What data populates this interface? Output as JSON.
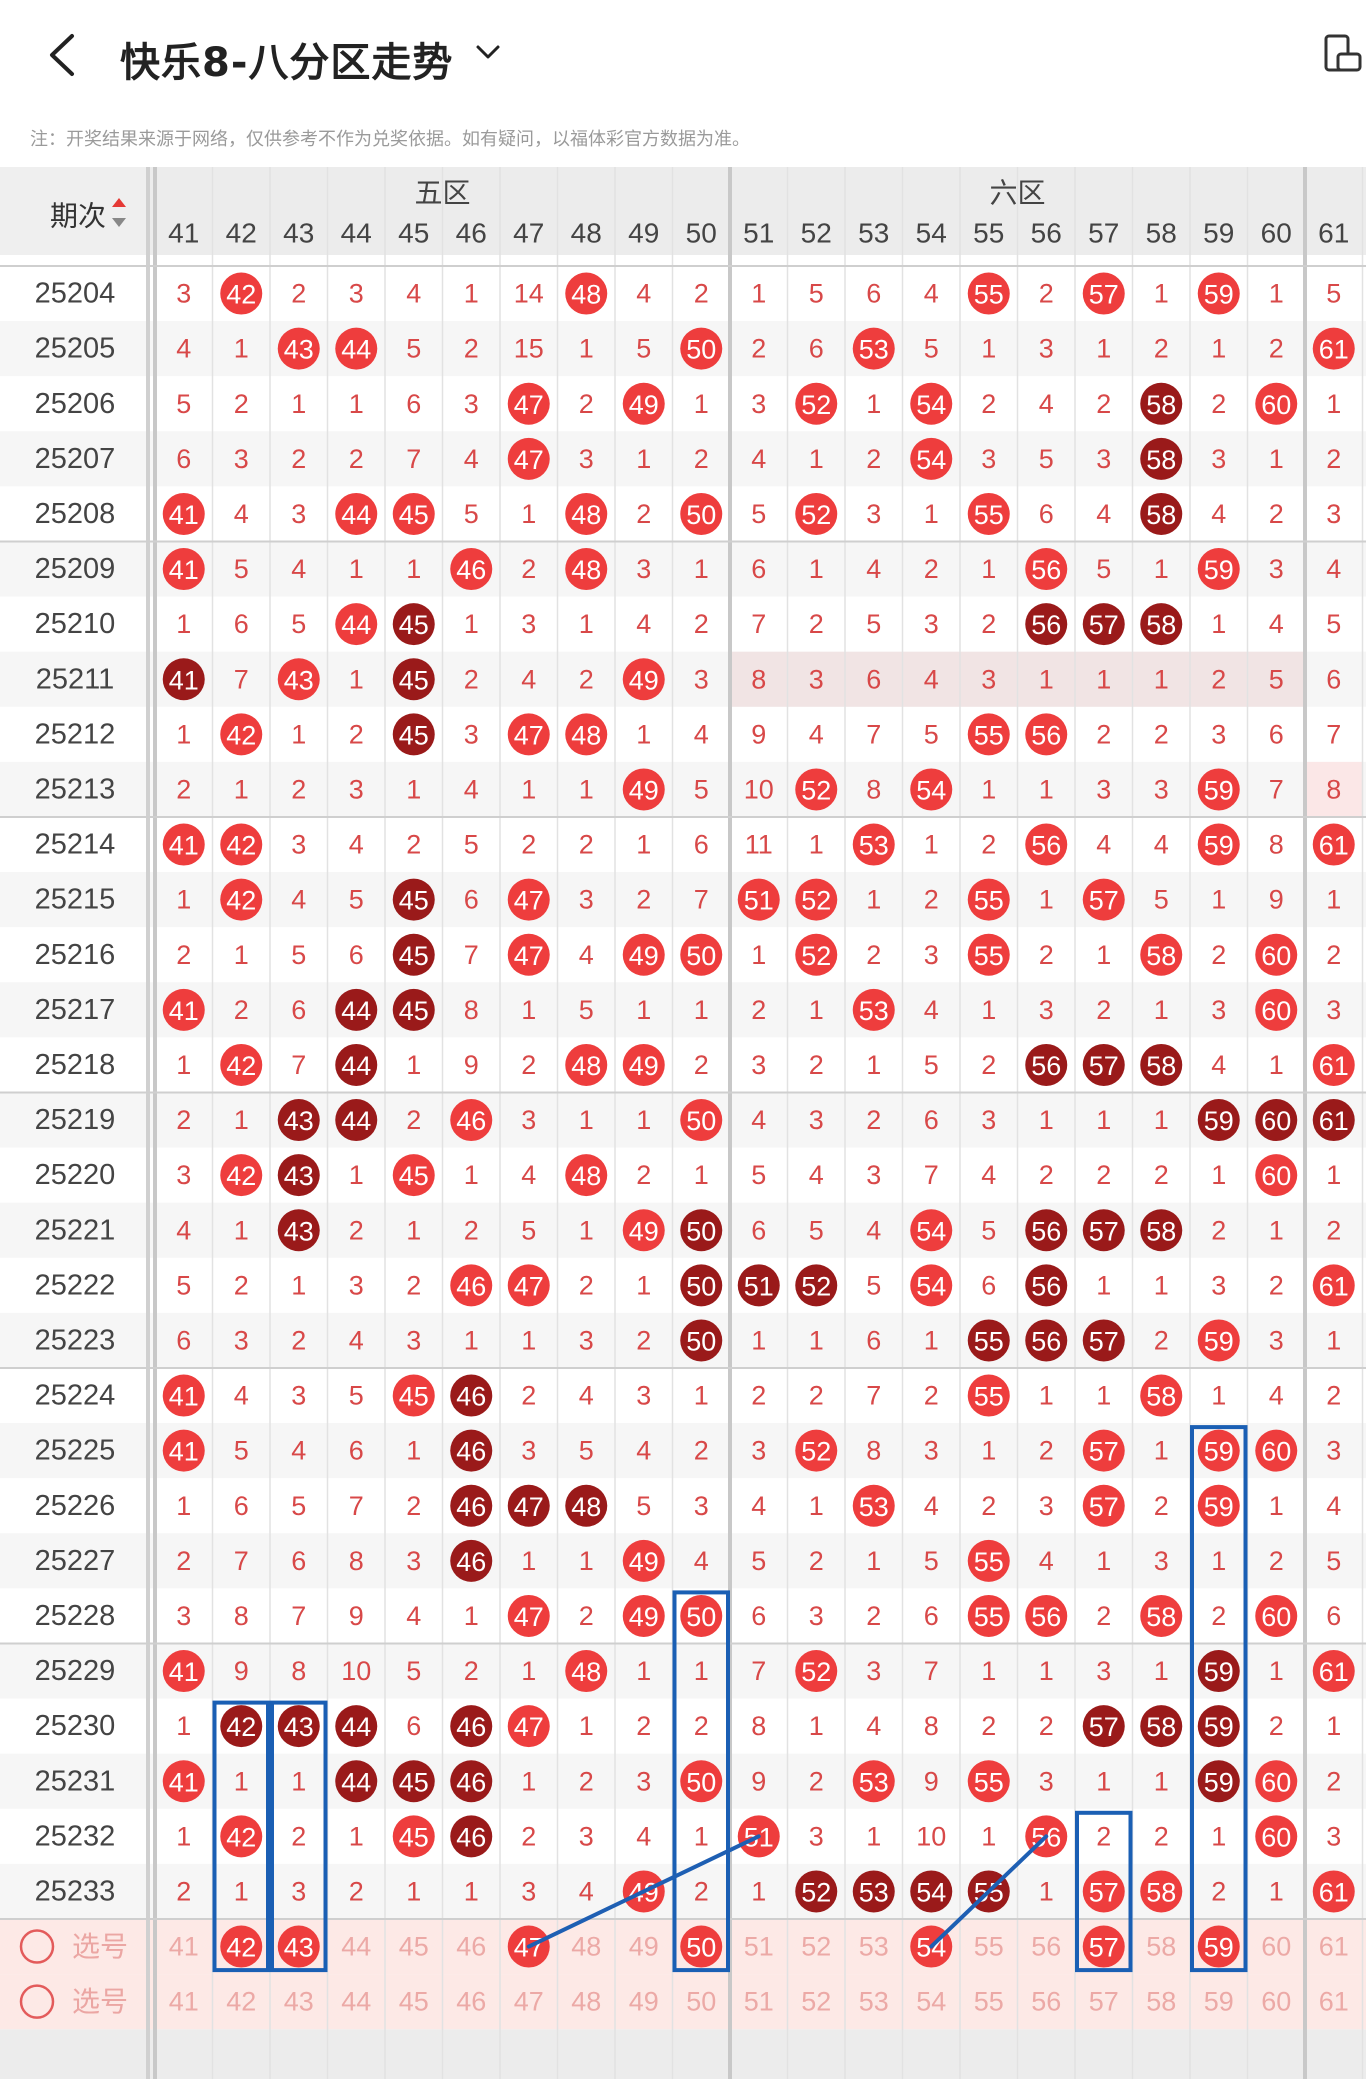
{
  "header": {
    "title": "快乐8-八分区走势"
  },
  "notice": "注：开奖结果来源于网络，仅供参考不作为兑奖依据。如有疑问，以福体彩官方数据为准。",
  "table": {
    "period_header": "期次",
    "zone_labels": [
      "五区",
      "六区"
    ],
    "columns": [
      41,
      42,
      43,
      44,
      45,
      46,
      47,
      48,
      49,
      50,
      51,
      52,
      53,
      54,
      55,
      56,
      57,
      58,
      59,
      60,
      61
    ],
    "rows": [
      {
        "period": "25204",
        "cells": [
          3,
          "h42",
          2,
          3,
          4,
          1,
          14,
          "h48",
          4,
          2,
          1,
          5,
          6,
          4,
          "h55",
          2,
          "h57",
          1,
          "h59",
          1,
          5
        ]
      },
      {
        "period": "25205",
        "cells": [
          4,
          1,
          "h43",
          "h44",
          5,
          2,
          15,
          1,
          5,
          "h50",
          2,
          6,
          "h53",
          5,
          1,
          3,
          1,
          2,
          1,
          2,
          "h61"
        ]
      },
      {
        "period": "25206",
        "cells": [
          5,
          2,
          1,
          1,
          6,
          3,
          "h47",
          2,
          "h49",
          1,
          3,
          "h52",
          1,
          "h54",
          2,
          4,
          2,
          "d58",
          2,
          "h60",
          1
        ]
      },
      {
        "period": "25207",
        "cells": [
          6,
          3,
          2,
          2,
          7,
          4,
          "h47",
          3,
          1,
          2,
          4,
          1,
          2,
          "h54",
          3,
          5,
          3,
          "d58",
          3,
          1,
          2
        ]
      },
      {
        "period": "25208",
        "cells": [
          "h41",
          4,
          3,
          "h44",
          "h45",
          5,
          1,
          "h48",
          2,
          "h50",
          5,
          "h52",
          3,
          1,
          "h55",
          6,
          4,
          "d58",
          4,
          2,
          3
        ]
      },
      {
        "period": "25209",
        "cells": [
          "h41",
          5,
          4,
          1,
          1,
          "h46",
          2,
          "h48",
          3,
          1,
          6,
          1,
          4,
          2,
          1,
          "h56",
          5,
          1,
          "h59",
          3,
          4
        ]
      },
      {
        "period": "25210",
        "cells": [
          1,
          6,
          5,
          "h44",
          "d45",
          1,
          3,
          1,
          4,
          2,
          7,
          2,
          5,
          3,
          2,
          "d56",
          "d57",
          "d58",
          1,
          4,
          5
        ]
      },
      {
        "period": "25211",
        "cells": [
          "d41",
          7,
          "h43",
          1,
          "d45",
          2,
          4,
          2,
          "h49",
          3,
          8,
          3,
          6,
          4,
          3,
          1,
          1,
          1,
          2,
          5,
          6
        ]
      },
      {
        "period": "25212",
        "cells": [
          1,
          "h42",
          1,
          2,
          "d45",
          3,
          "h47",
          "h48",
          1,
          4,
          9,
          4,
          7,
          5,
          "h55",
          "h56",
          2,
          2,
          3,
          6,
          7
        ]
      },
      {
        "period": "25213",
        "cells": [
          2,
          1,
          2,
          3,
          1,
          4,
          1,
          1,
          "h49",
          5,
          10,
          "h52",
          8,
          "h54",
          1,
          1,
          3,
          3,
          "h59",
          7,
          8
        ]
      },
      {
        "period": "25214",
        "cells": [
          "h41",
          "h42",
          3,
          4,
          2,
          5,
          2,
          2,
          1,
          6,
          11,
          1,
          "h53",
          1,
          2,
          "h56",
          4,
          4,
          "h59",
          8,
          "h61"
        ]
      },
      {
        "period": "25215",
        "cells": [
          1,
          "h42",
          4,
          5,
          "d45",
          6,
          "h47",
          3,
          2,
          7,
          "h51",
          "h52",
          1,
          2,
          "h55",
          1,
          "h57",
          5,
          1,
          9,
          1
        ]
      },
      {
        "period": "25216",
        "cells": [
          2,
          1,
          5,
          6,
          "d45",
          7,
          "h47",
          4,
          "h49",
          "h50",
          1,
          "h52",
          2,
          3,
          "h55",
          2,
          1,
          "h58",
          2,
          "h60",
          2
        ]
      },
      {
        "period": "25217",
        "cells": [
          "h41",
          2,
          6,
          "d44",
          "d45",
          8,
          1,
          5,
          1,
          1,
          2,
          1,
          "h53",
          4,
          1,
          3,
          2,
          1,
          3,
          "h60",
          3
        ]
      },
      {
        "period": "25218",
        "cells": [
          1,
          "h42",
          7,
          "d44",
          1,
          9,
          2,
          "h48",
          "h49",
          2,
          3,
          2,
          1,
          5,
          2,
          "d56",
          "d57",
          "d58",
          4,
          1,
          "h61"
        ]
      },
      {
        "period": "25219",
        "cells": [
          2,
          1,
          "d43",
          "d44",
          2,
          "h46",
          3,
          1,
          1,
          "h50",
          4,
          3,
          2,
          6,
          3,
          1,
          1,
          1,
          "d59",
          "d60",
          "d61"
        ]
      },
      {
        "period": "25220",
        "cells": [
          3,
          "h42",
          "d43",
          1,
          "h45",
          1,
          4,
          "h48",
          2,
          1,
          5,
          4,
          3,
          7,
          4,
          2,
          2,
          2,
          1,
          "h60",
          1
        ]
      },
      {
        "period": "25221",
        "cells": [
          4,
          1,
          "d43",
          2,
          1,
          2,
          5,
          1,
          "h49",
          "d50",
          6,
          5,
          4,
          "h54",
          5,
          "d56",
          "d57",
          "d58",
          2,
          1,
          2
        ]
      },
      {
        "period": "25222",
        "cells": [
          5,
          2,
          1,
          3,
          2,
          "h46",
          "h47",
          2,
          1,
          "d50",
          "d51",
          "d52",
          5,
          "h54",
          6,
          "d56",
          1,
          1,
          3,
          2,
          "h61"
        ]
      },
      {
        "period": "25223",
        "cells": [
          6,
          3,
          2,
          4,
          3,
          1,
          1,
          3,
          2,
          "d50",
          1,
          1,
          6,
          1,
          "d55",
          "d56",
          "d57",
          2,
          "h59",
          3,
          1
        ]
      },
      {
        "period": "25224",
        "cells": [
          "h41",
          4,
          3,
          5,
          "h45",
          "d46",
          2,
          4,
          3,
          1,
          2,
          2,
          7,
          2,
          "h55",
          1,
          1,
          "h58",
          1,
          4,
          2
        ]
      },
      {
        "period": "25225",
        "cells": [
          "h41",
          5,
          4,
          6,
          1,
          "d46",
          3,
          5,
          4,
          2,
          3,
          "h52",
          8,
          3,
          1,
          2,
          "h57",
          1,
          "h59",
          "h60",
          3
        ]
      },
      {
        "period": "25226",
        "cells": [
          1,
          6,
          5,
          7,
          2,
          "d46",
          "d47",
          "d48",
          5,
          3,
          4,
          1,
          "h53",
          4,
          2,
          3,
          "h57",
          2,
          "h59",
          1,
          4
        ]
      },
      {
        "period": "25227",
        "cells": [
          2,
          7,
          6,
          8,
          3,
          "d46",
          1,
          1,
          "h49",
          4,
          5,
          2,
          1,
          5,
          "h55",
          4,
          1,
          3,
          1,
          2,
          5
        ]
      },
      {
        "period": "25228",
        "cells": [
          3,
          8,
          7,
          9,
          4,
          1,
          "h47",
          2,
          "h49",
          "h50",
          6,
          3,
          2,
          6,
          "h55",
          "h56",
          2,
          "h58",
          2,
          "h60",
          6
        ]
      },
      {
        "period": "25229",
        "cells": [
          "h41",
          9,
          8,
          10,
          5,
          2,
          1,
          "h48",
          1,
          1,
          7,
          "h52",
          3,
          7,
          1,
          1,
          3,
          1,
          "d59",
          1,
          "h61"
        ]
      },
      {
        "period": "25230",
        "cells": [
          1,
          "d42",
          "d43",
          "d44",
          6,
          "d46",
          "h47",
          1,
          2,
          2,
          8,
          1,
          4,
          8,
          2,
          2,
          "d57",
          "d58",
          "d59",
          2,
          1
        ]
      },
      {
        "period": "25231",
        "cells": [
          "h41",
          1,
          1,
          "d44",
          "d45",
          "d46",
          1,
          2,
          3,
          "h50",
          9,
          2,
          "h53",
          9,
          "h55",
          3,
          1,
          1,
          "d59",
          "h60",
          2
        ]
      },
      {
        "period": "25232",
        "cells": [
          1,
          "h42",
          2,
          1,
          "h45",
          "d46",
          2,
          3,
          4,
          1,
          "h51",
          3,
          1,
          10,
          1,
          "h56",
          2,
          2,
          1,
          "h60",
          3
        ]
      },
      {
        "period": "25233",
        "cells": [
          2,
          1,
          3,
          2,
          1,
          1,
          3,
          4,
          "h49",
          2,
          1,
          "d52",
          "d53",
          "d54",
          "d55",
          1,
          "h57",
          "h58",
          2,
          1,
          "h61"
        ]
      }
    ],
    "select_rows": [
      {
        "label": "选号",
        "picked": [
          42,
          43,
          47,
          50,
          54,
          57,
          59
        ]
      },
      {
        "label": "选号",
        "picked": []
      }
    ]
  },
  "colors": {
    "hot": "#ee3d3d",
    "dark": "#9a1a1a",
    "num": "#d84848",
    "sel_bg": "#fde9e6",
    "sel_num": "#eca9a6",
    "box": "#1a5fb4",
    "line": "#1e5fb3",
    "header_bg": "#ececec"
  }
}
